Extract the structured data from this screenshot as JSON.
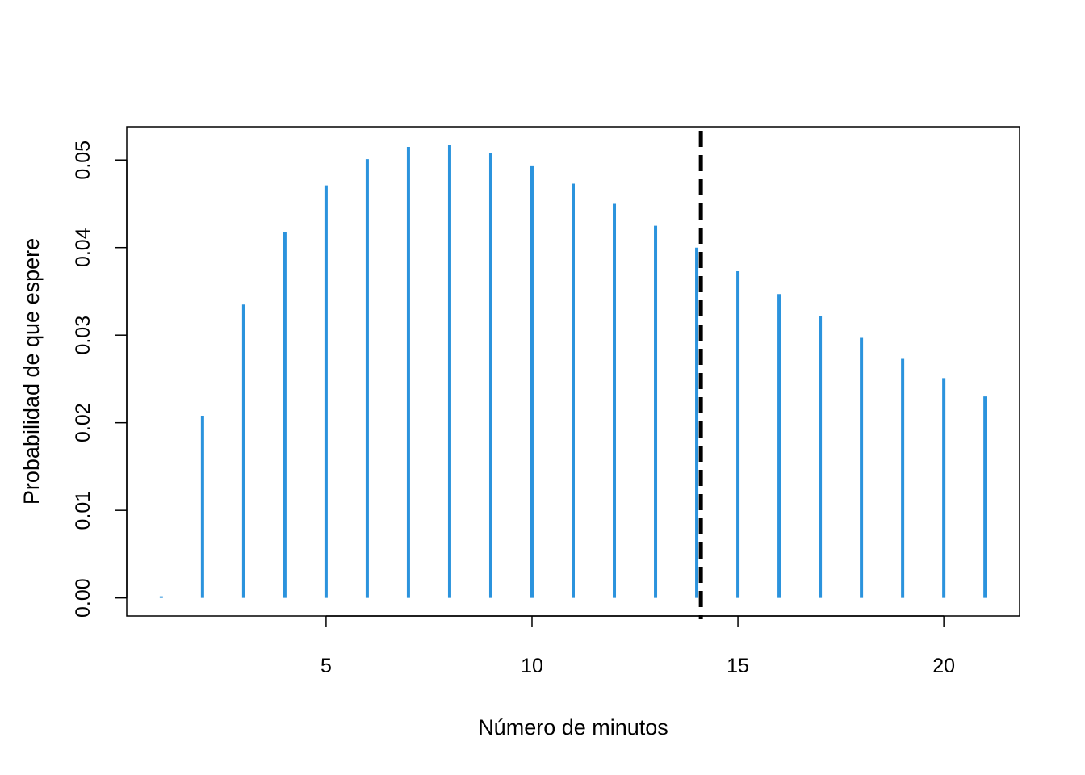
{
  "chart_data": {
    "type": "bar",
    "style": "vertical-lines",
    "title": "",
    "xlabel": "Número de minutos",
    "ylabel": "Probabilidad de que espere",
    "x": [
      1,
      2,
      3,
      4,
      5,
      6,
      7,
      8,
      9,
      10,
      11,
      12,
      13,
      14,
      15,
      16,
      17,
      18,
      19,
      20,
      21
    ],
    "values": [
      0.0,
      0.0208,
      0.0335,
      0.0418,
      0.0471,
      0.0501,
      0.0515,
      0.0517,
      0.0508,
      0.0493,
      0.0473,
      0.045,
      0.0425,
      0.04,
      0.0373,
      0.0347,
      0.0322,
      0.0297,
      0.0273,
      0.0251,
      0.023
    ],
    "xlim": [
      0.16,
      21.84
    ],
    "ylim": [
      -0.00206,
      0.0538
    ],
    "xticks": [
      5,
      10,
      15,
      20
    ],
    "xtick_labels": [
      "5",
      "10",
      "15",
      "20"
    ],
    "yticks": [
      0.0,
      0.01,
      0.02,
      0.03,
      0.04,
      0.05
    ],
    "ytick_labels": [
      "0.00",
      "0.01",
      "0.02",
      "0.03",
      "0.04",
      "0.05"
    ],
    "reference_line": {
      "x": 14.1,
      "style": "dashed"
    },
    "grid": false,
    "legend": "none",
    "colors": {
      "series": "#2b93dd",
      "reference": "#000000",
      "frame": "#000000"
    }
  }
}
